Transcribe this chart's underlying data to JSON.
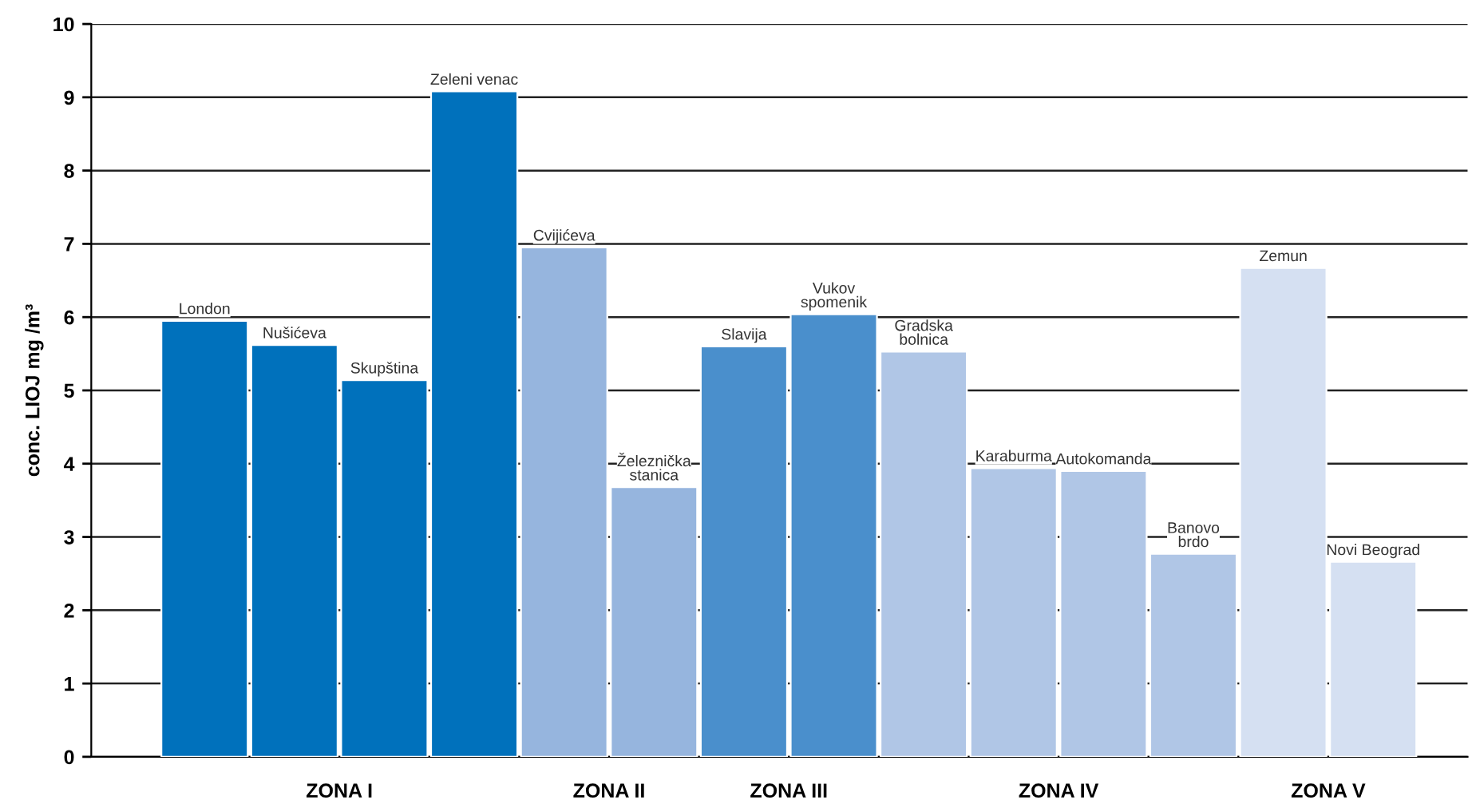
{
  "chart_data": {
    "type": "bar",
    "ylabel": "conc. LIOJ mg /m³",
    "categories": [
      "London",
      "Nušićeva",
      "Skupština",
      "Zeleni venac",
      "Cvijićeva",
      "Železnička\nstanica",
      "Slavija",
      "Vukov\nspomenik",
      "Gradska\nbolnica",
      "Karaburma",
      "Autokomanda",
      "Banovo\nbrdo",
      "Zemun",
      "Novi Beograd"
    ],
    "values": [
      5.95,
      5.62,
      5.14,
      9.08,
      6.95,
      3.68,
      5.6,
      6.04,
      5.53,
      3.94,
      3.9,
      2.77,
      6.67,
      2.66
    ],
    "colors": [
      "#0071bc",
      "#0071bc",
      "#0071bc",
      "#0071bc",
      "#96b5de",
      "#96b5de",
      "#4a8fcc",
      "#4a8fcc",
      "#b0c6e6",
      "#b0c6e6",
      "#b0c6e6",
      "#b0c6e6",
      "#d5e0f2",
      "#d5e0f2"
    ],
    "ylim": [
      0,
      10
    ],
    "yticks": [
      0,
      1,
      2,
      3,
      4,
      5,
      6,
      7,
      8,
      9,
      10
    ],
    "grid": "y",
    "annotations": [
      "ZONA I",
      "ZONA II",
      "ZONA III",
      "ZONA IV",
      "ZONA V"
    ]
  }
}
